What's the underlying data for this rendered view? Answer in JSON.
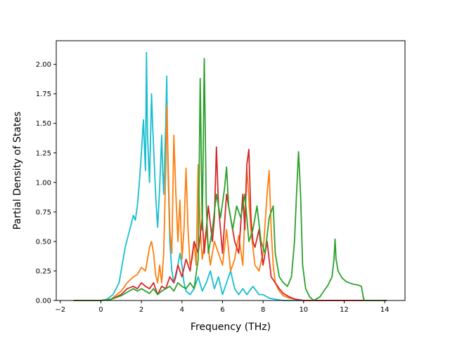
{
  "chart_data": {
    "type": "line",
    "title": "",
    "xlabel": "Frequency (THz)",
    "ylabel": "Partial Density of States",
    "xlim": [
      -2.2,
      15.0
    ],
    "ylim": [
      0.0,
      2.2
    ],
    "xticks": [
      -2,
      0,
      2,
      4,
      6,
      8,
      10,
      12,
      14
    ],
    "yticks": [
      0.0,
      0.25,
      0.5,
      0.75,
      1.0,
      1.25,
      1.5,
      1.75,
      2.0
    ],
    "xtick_labels": [
      "−2",
      "0",
      "2",
      "4",
      "6",
      "8",
      "10",
      "12",
      "14"
    ],
    "ytick_labels": [
      "0.00",
      "0.25",
      "0.50",
      "0.75",
      "1.00",
      "1.25",
      "1.50",
      "1.75",
      "2.00"
    ],
    "grid": false,
    "legend": "none",
    "series": [
      {
        "color": "#17becf",
        "points": [
          [
            -1.35,
            0
          ],
          [
            0,
            0
          ],
          [
            0.3,
            0.01
          ],
          [
            0.6,
            0.05
          ],
          [
            0.9,
            0.15
          ],
          [
            1.2,
            0.45
          ],
          [
            1.5,
            0.65
          ],
          [
            1.6,
            0.72
          ],
          [
            1.7,
            0.68
          ],
          [
            1.8,
            0.8
          ],
          [
            1.9,
            1.0
          ],
          [
            2.0,
            1.25
          ],
          [
            2.1,
            1.53
          ],
          [
            2.15,
            1.3
          ],
          [
            2.2,
            1.1
          ],
          [
            2.25,
            2.1
          ],
          [
            2.3,
            1.4
          ],
          [
            2.4,
            1.0
          ],
          [
            2.5,
            1.75
          ],
          [
            2.55,
            1.5
          ],
          [
            2.6,
            1.3
          ],
          [
            2.7,
            0.9
          ],
          [
            2.8,
            0.62
          ],
          [
            2.9,
            0.95
          ],
          [
            3.0,
            1.4
          ],
          [
            3.05,
            1.1
          ],
          [
            3.1,
            0.9
          ],
          [
            3.2,
            1.5
          ],
          [
            3.25,
            1.9
          ],
          [
            3.3,
            1.2
          ],
          [
            3.4,
            0.5
          ],
          [
            3.5,
            0.25
          ],
          [
            3.6,
            0.15
          ],
          [
            3.7,
            0.2
          ],
          [
            3.8,
            0.3
          ],
          [
            3.9,
            0.4
          ],
          [
            4.0,
            0.3
          ],
          [
            4.1,
            0.15
          ],
          [
            4.2,
            0.08
          ],
          [
            4.4,
            0.05
          ],
          [
            4.6,
            0.1
          ],
          [
            4.8,
            0.2
          ],
          [
            5.0,
            0.08
          ],
          [
            5.2,
            0.15
          ],
          [
            5.4,
            0.25
          ],
          [
            5.6,
            0.1
          ],
          [
            5.8,
            0.2
          ],
          [
            6.0,
            0.05
          ],
          [
            6.2,
            0.15
          ],
          [
            6.4,
            0.25
          ],
          [
            6.6,
            0.1
          ],
          [
            6.8,
            0.05
          ],
          [
            7.0,
            0.1
          ],
          [
            7.2,
            0.05
          ],
          [
            7.5,
            0.12
          ],
          [
            7.8,
            0.05
          ],
          [
            8.0,
            0.05
          ],
          [
            8.3,
            0.02
          ],
          [
            8.6,
            0.01
          ],
          [
            9.0,
            0
          ],
          [
            14.1,
            0
          ]
        ]
      },
      {
        "color": "#ff7f0e",
        "points": [
          [
            -1.35,
            0
          ],
          [
            0,
            0
          ],
          [
            0.5,
            0.01
          ],
          [
            1.0,
            0.08
          ],
          [
            1.3,
            0.15
          ],
          [
            1.6,
            0.2
          ],
          [
            1.8,
            0.22
          ],
          [
            2.0,
            0.28
          ],
          [
            2.2,
            0.25
          ],
          [
            2.4,
            0.45
          ],
          [
            2.5,
            0.5
          ],
          [
            2.6,
            0.4
          ],
          [
            2.7,
            0.22
          ],
          [
            2.8,
            0.15
          ],
          [
            2.9,
            0.3
          ],
          [
            3.0,
            0.15
          ],
          [
            3.1,
            0.4
          ],
          [
            3.2,
            1.1
          ],
          [
            3.25,
            1.65
          ],
          [
            3.3,
            1.3
          ],
          [
            3.4,
            0.6
          ],
          [
            3.5,
            0.4
          ],
          [
            3.6,
            1.4
          ],
          [
            3.7,
            0.9
          ],
          [
            3.8,
            0.5
          ],
          [
            3.9,
            0.85
          ],
          [
            4.0,
            0.35
          ],
          [
            4.1,
            0.6
          ],
          [
            4.2,
            1.12
          ],
          [
            4.3,
            0.6
          ],
          [
            4.4,
            0.3
          ],
          [
            4.5,
            0.35
          ],
          [
            4.6,
            0.5
          ],
          [
            4.7,
            0.3
          ],
          [
            4.8,
            1.15
          ],
          [
            4.9,
            0.6
          ],
          [
            5.0,
            0.35
          ],
          [
            5.2,
            0.6
          ],
          [
            5.4,
            0.3
          ],
          [
            5.6,
            0.5
          ],
          [
            5.8,
            0.4
          ],
          [
            6.0,
            0.3
          ],
          [
            6.2,
            0.6
          ],
          [
            6.4,
            0.25
          ],
          [
            6.6,
            0.35
          ],
          [
            6.8,
            0.55
          ],
          [
            7.0,
            0.3
          ],
          [
            7.2,
            1.12
          ],
          [
            7.4,
            0.6
          ],
          [
            7.6,
            0.3
          ],
          [
            7.8,
            0.25
          ],
          [
            8.0,
            0.4
          ],
          [
            8.2,
            0.9
          ],
          [
            8.3,
            1.1
          ],
          [
            8.4,
            0.6
          ],
          [
            8.5,
            0.3
          ],
          [
            8.6,
            0.15
          ],
          [
            8.8,
            0.08
          ],
          [
            9.0,
            0.04
          ],
          [
            9.3,
            0.02
          ],
          [
            9.6,
            0.01
          ],
          [
            10.0,
            0
          ],
          [
            14.1,
            0
          ]
        ]
      },
      {
        "color": "#d62728",
        "points": [
          [
            -1.35,
            0
          ],
          [
            0,
            0
          ],
          [
            0.5,
            0.01
          ],
          [
            1.0,
            0.05
          ],
          [
            1.3,
            0.1
          ],
          [
            1.6,
            0.12
          ],
          [
            1.8,
            0.1
          ],
          [
            2.0,
            0.15
          ],
          [
            2.2,
            0.12
          ],
          [
            2.4,
            0.1
          ],
          [
            2.6,
            0.15
          ],
          [
            2.8,
            0.05
          ],
          [
            3.0,
            0.12
          ],
          [
            3.2,
            0.1
          ],
          [
            3.4,
            0.2
          ],
          [
            3.6,
            0.15
          ],
          [
            3.8,
            0.3
          ],
          [
            4.0,
            0.2
          ],
          [
            4.2,
            0.35
          ],
          [
            4.4,
            0.25
          ],
          [
            4.6,
            0.5
          ],
          [
            4.8,
            0.4
          ],
          [
            5.0,
            0.7
          ],
          [
            5.1,
            0.4
          ],
          [
            5.3,
            0.8
          ],
          [
            5.5,
            0.5
          ],
          [
            5.6,
            0.7
          ],
          [
            5.7,
            1.3
          ],
          [
            5.8,
            0.8
          ],
          [
            5.9,
            0.6
          ],
          [
            6.0,
            0.4
          ],
          [
            6.2,
            0.9
          ],
          [
            6.4,
            0.7
          ],
          [
            6.6,
            0.5
          ],
          [
            6.8,
            0.4
          ],
          [
            7.0,
            0.9
          ],
          [
            7.1,
            0.6
          ],
          [
            7.2,
            1.15
          ],
          [
            7.3,
            1.28
          ],
          [
            7.4,
            0.7
          ],
          [
            7.5,
            0.5
          ],
          [
            7.6,
            0.45
          ],
          [
            7.8,
            0.6
          ],
          [
            8.0,
            0.3
          ],
          [
            8.2,
            0.5
          ],
          [
            8.4,
            0.2
          ],
          [
            8.6,
            0.15
          ],
          [
            8.8,
            0.1
          ],
          [
            9.0,
            0.06
          ],
          [
            9.3,
            0.03
          ],
          [
            9.6,
            0.01
          ],
          [
            10.0,
            0
          ],
          [
            14.1,
            0
          ]
        ]
      },
      {
        "color": "#2ca02c",
        "points": [
          [
            -1.35,
            0
          ],
          [
            0,
            0
          ],
          [
            0.5,
            0.01
          ],
          [
            1.0,
            0.04
          ],
          [
            1.3,
            0.07
          ],
          [
            1.6,
            0.1
          ],
          [
            1.8,
            0.08
          ],
          [
            2.0,
            0.1
          ],
          [
            2.2,
            0.08
          ],
          [
            2.4,
            0.06
          ],
          [
            2.6,
            0.1
          ],
          [
            2.8,
            0.05
          ],
          [
            3.0,
            0.08
          ],
          [
            3.2,
            0.1
          ],
          [
            3.4,
            0.12
          ],
          [
            3.6,
            0.08
          ],
          [
            3.8,
            0.15
          ],
          [
            4.0,
            0.12
          ],
          [
            4.2,
            0.1
          ],
          [
            4.4,
            0.15
          ],
          [
            4.6,
            0.1
          ],
          [
            4.8,
            0.35
          ],
          [
            4.9,
            1.88
          ],
          [
            5.0,
            0.6
          ],
          [
            5.1,
            2.05
          ],
          [
            5.2,
            0.8
          ],
          [
            5.3,
            0.4
          ],
          [
            5.5,
            0.6
          ],
          [
            5.7,
            0.9
          ],
          [
            5.9,
            0.7
          ],
          [
            6.1,
            0.95
          ],
          [
            6.2,
            1.13
          ],
          [
            6.3,
            0.8
          ],
          [
            6.5,
            0.6
          ],
          [
            6.7,
            0.8
          ],
          [
            6.9,
            0.7
          ],
          [
            7.1,
            0.9
          ],
          [
            7.3,
            0.5
          ],
          [
            7.5,
            0.6
          ],
          [
            7.7,
            0.8
          ],
          [
            7.9,
            0.5
          ],
          [
            8.1,
            0.4
          ],
          [
            8.3,
            0.7
          ],
          [
            8.5,
            0.8
          ],
          [
            8.6,
            0.4
          ],
          [
            8.8,
            0.2
          ],
          [
            9.0,
            0.15
          ],
          [
            9.2,
            0.12
          ],
          [
            9.4,
            0.2
          ],
          [
            9.55,
            0.5
          ],
          [
            9.65,
            0.9
          ],
          [
            9.75,
            1.26
          ],
          [
            9.85,
            0.9
          ],
          [
            9.95,
            0.3
          ],
          [
            10.1,
            0.1
          ],
          [
            10.3,
            0.03
          ],
          [
            10.5,
            0.0
          ],
          [
            10.8,
            0.03
          ],
          [
            11.0,
            0.08
          ],
          [
            11.2,
            0.13
          ],
          [
            11.4,
            0.2
          ],
          [
            11.5,
            0.35
          ],
          [
            11.55,
            0.52
          ],
          [
            11.6,
            0.35
          ],
          [
            11.7,
            0.25
          ],
          [
            11.9,
            0.19
          ],
          [
            12.1,
            0.16
          ],
          [
            12.4,
            0.14
          ],
          [
            12.7,
            0.13
          ],
          [
            12.85,
            0.12
          ],
          [
            12.95,
            0.02
          ],
          [
            13.0,
            0
          ],
          [
            14.1,
            0
          ]
        ]
      }
    ]
  }
}
